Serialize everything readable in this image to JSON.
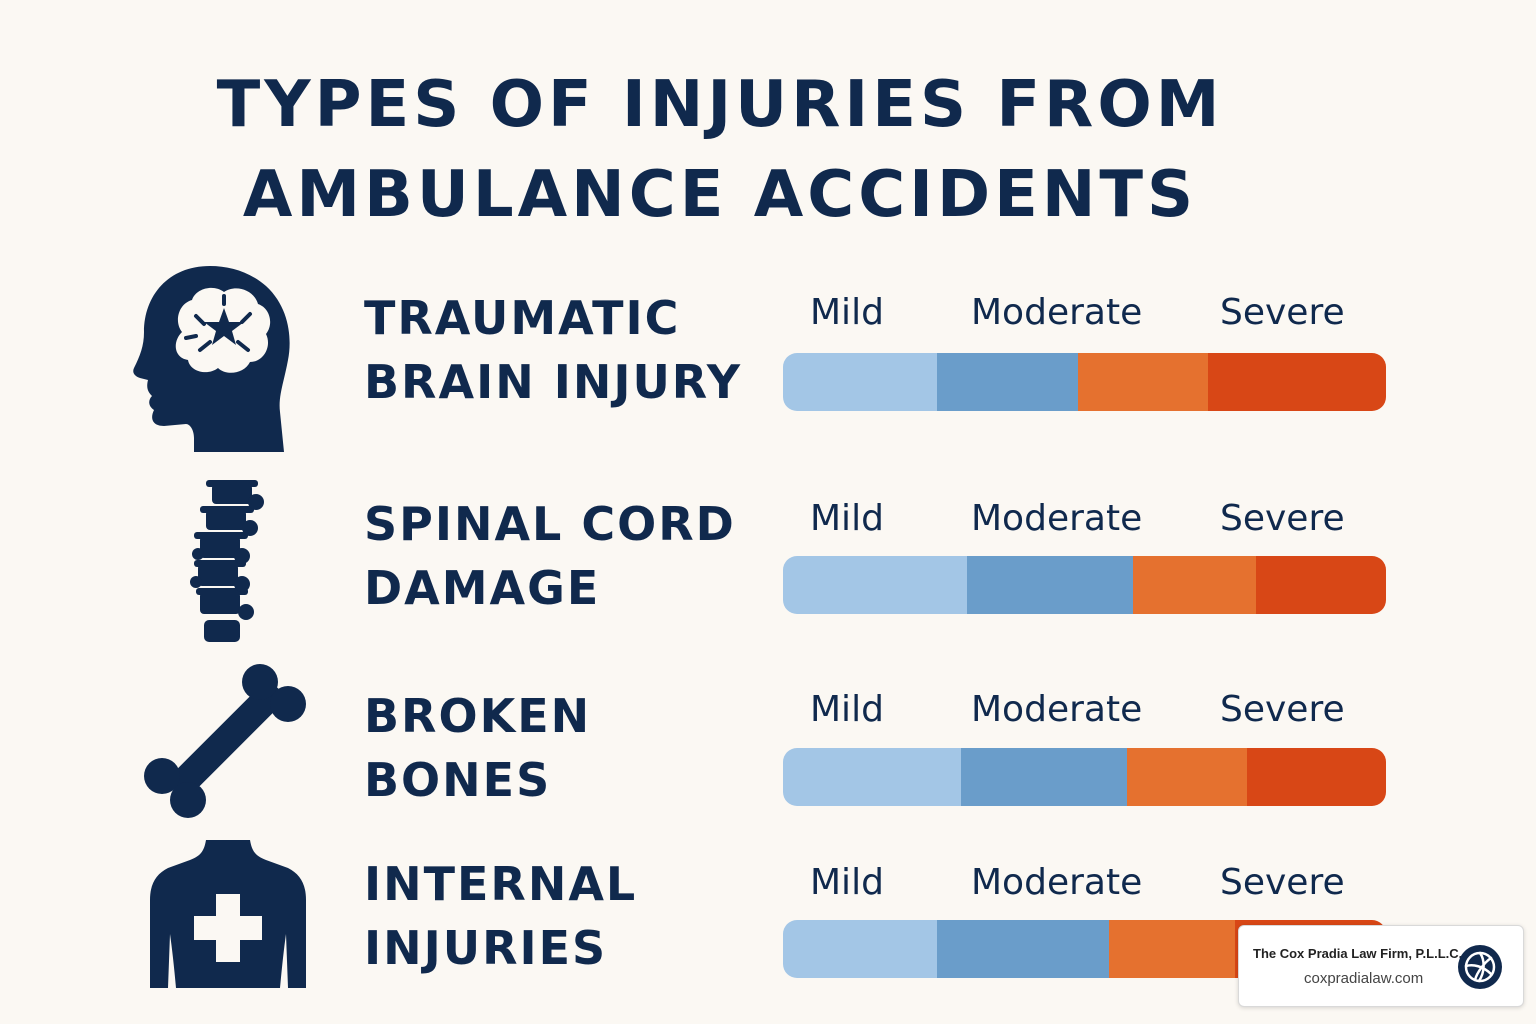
{
  "title": {
    "line1": "TYPES OF INJURIES FROM",
    "line2": "AMBULANCE ACCIDENTS"
  },
  "colors": {
    "text": "#10294d",
    "mild": "#a3c6e6",
    "moderate": "#6a9dca",
    "severe_light": "#e5712f",
    "severe_dark": "#d84716",
    "background": "#fbf8f3"
  },
  "injuries": [
    {
      "icon": "brain-head-icon",
      "label_line1": "TRAUMATIC",
      "label_line2": "BRAIN INJURY",
      "scale": {
        "mild": "Mild",
        "moderate": "Moderate",
        "severe": "Severe"
      },
      "segments": [
        0.255,
        0.235,
        0.215,
        0.295
      ]
    },
    {
      "icon": "spine-icon",
      "label_line1": "SPINAL CORD",
      "label_line2": "DAMAGE",
      "scale": {
        "mild": "Mild",
        "moderate": "Moderate",
        "severe": "Severe"
      },
      "segments": [
        0.305,
        0.275,
        0.205,
        0.215
      ]
    },
    {
      "icon": "bone-icon",
      "label_line1": "BROKEN",
      "label_line2": "BONES",
      "scale": {
        "mild": "Mild",
        "moderate": "Moderate",
        "severe": "Severe"
      },
      "segments": [
        0.295,
        0.275,
        0.2,
        0.23
      ]
    },
    {
      "icon": "torso-cross-icon",
      "label_line1": "INTERNAL",
      "label_line2": "INJURIES",
      "scale": {
        "mild": "Mild",
        "moderate": "Moderate",
        "severe": "Severe"
      },
      "segments": [
        0.255,
        0.285,
        0.21,
        0.25
      ]
    }
  ],
  "badge": {
    "firm_name": "The Cox Pradia Law Firm, P.L.L.C.",
    "url": "coxpradialaw.com",
    "logo_icon": "volleyball-logo-icon"
  }
}
